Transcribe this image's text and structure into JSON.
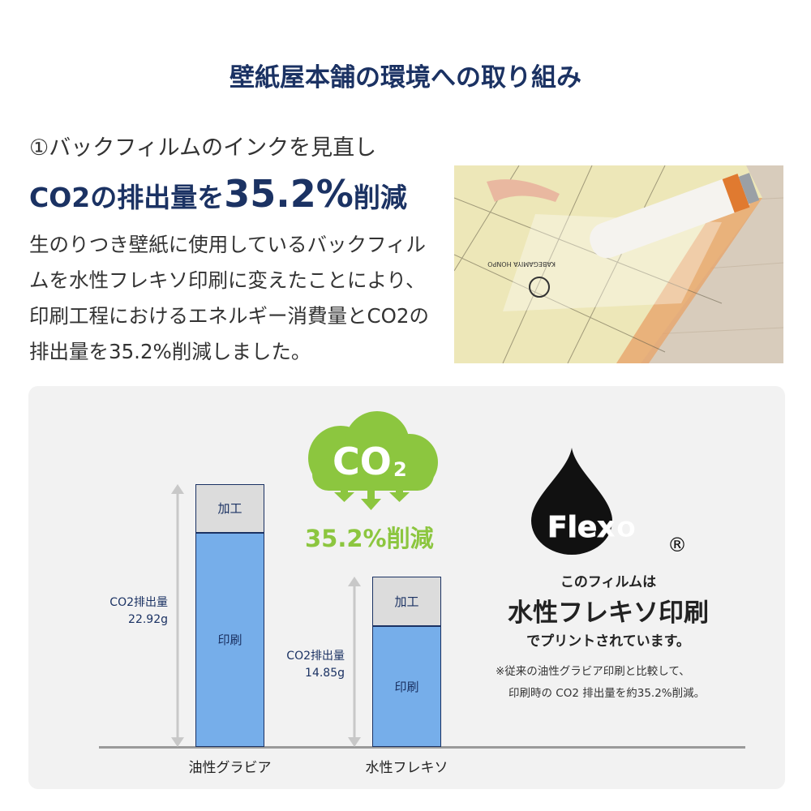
{
  "title": "壁紙屋本舗の環境への取り組み",
  "heading": {
    "line1": "①バックフィルムのインクを見直し",
    "line2_prefix": "CO2の排出量を",
    "line2_value": "35.2%",
    "line2_suffix": "削減"
  },
  "body": "生のりつき壁紙に使用しているバックフィルムを水性フレキソ印刷に変えたことにより、印刷工程におけるエネルギー消費量とCO2の排出量を35.2%削減しました。",
  "photo": {
    "print_text": "KABEGAMIYA HONPO"
  },
  "badge": {
    "cloud_text": "CO",
    "cloud_sub": "2",
    "reduction": "35.2%削減",
    "color": "#8cc63f"
  },
  "flexo": {
    "logo": "Flexo",
    "registered": "®",
    "line1": "このフィルムは",
    "line2": "水性フレキソ印刷",
    "line3": "でプリントされています。",
    "note1": "※従来の油性グラビア印刷と比較して、",
    "note2": "印刷時の CO2 排出量を約35.2%削減。"
  },
  "chart_data": {
    "type": "bar",
    "stacked": true,
    "categories": [
      "油性グラビア",
      "水性フレキソ"
    ],
    "segment_labels": [
      "印刷",
      "加工"
    ],
    "series": [
      {
        "name": "印刷",
        "values": [
          18.68,
          10.52
        ]
      },
      {
        "name": "加工",
        "values": [
          4.24,
          4.33
        ]
      }
    ],
    "totals": [
      22.92,
      14.85
    ],
    "total_labels": [
      {
        "label": "CO2排出量",
        "value": "22.92g"
      },
      {
        "label": "CO2排出量",
        "value": "14.85g"
      }
    ],
    "colors": {
      "印刷": "#76aeea",
      "加工": "#dcdcdc"
    }
  }
}
